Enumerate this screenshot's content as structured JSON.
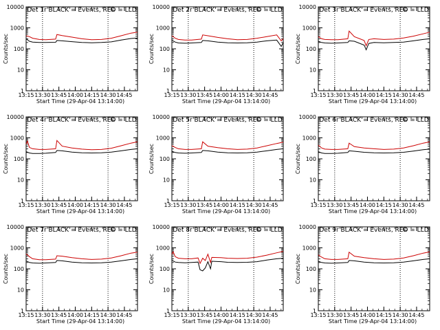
{
  "chart_data": [
    {
      "type": "line",
      "title": "Det 1r BLACK = Events, RED = LLD",
      "xlabel": "Start Time (29-Apr-04 13:14:00)",
      "ylabel": "Counts/sec",
      "yscale": "log",
      "ylim": [
        1,
        10000
      ],
      "x_ticks": [
        "13:15",
        "13:30",
        "13:45",
        "14:00",
        "14:15",
        "14:30",
        "14:45"
      ],
      "y_ticks": [
        "1",
        "10",
        "100",
        "1000",
        "10000"
      ],
      "x_range_min": [
        13.25,
        14.95
      ],
      "vlines_min": [
        13.5,
        14.5
      ],
      "series": [
        {
          "name": "Events",
          "color": "#000000",
          "x": [
            13.25,
            13.3,
            13.35,
            13.45,
            13.55,
            13.7,
            13.72,
            13.8,
            13.95,
            14.1,
            14.25,
            14.4,
            14.55,
            14.7,
            14.85,
            14.95
          ],
          "y": [
            300,
            230,
            210,
            200,
            200,
            205,
            250,
            240,
            220,
            200,
            195,
            200,
            215,
            260,
            310,
            330
          ]
        },
        {
          "name": "LLD",
          "color": "#cc0000",
          "x": [
            13.25,
            13.3,
            13.35,
            13.45,
            13.55,
            13.7,
            13.72,
            13.8,
            13.95,
            14.1,
            14.25,
            14.4,
            14.55,
            14.7,
            14.85,
            14.95
          ],
          "y": [
            420,
            380,
            320,
            280,
            270,
            290,
            480,
            430,
            360,
            300,
            270,
            280,
            320,
            420,
            560,
            620
          ]
        }
      ]
    },
    {
      "type": "line",
      "title": "Det 2r BLACK = Events, RED = LLD",
      "xlabel": "Start Time (29-Apr-04 13:14:00)",
      "ylabel": "Counts/sec",
      "yscale": "log",
      "ylim": [
        1,
        10000
      ],
      "x_ticks": [
        "13:15",
        "13:30",
        "13:45",
        "14:00",
        "14:15",
        "14:30",
        "14:45"
      ],
      "y_ticks": [
        "1",
        "10",
        "100",
        "1000",
        "10000"
      ],
      "x_range_min": [
        13.25,
        14.95
      ],
      "vlines_min": [
        13.5,
        14.5
      ],
      "series": [
        {
          "name": "Events",
          "color": "#000000",
          "x": [
            13.25,
            13.3,
            13.35,
            13.45,
            13.55,
            13.7,
            13.72,
            13.8,
            13.95,
            14.1,
            14.25,
            14.4,
            14.55,
            14.7,
            14.85,
            14.92,
            14.95
          ],
          "y": [
            260,
            210,
            190,
            185,
            190,
            200,
            250,
            240,
            210,
            195,
            190,
            195,
            210,
            240,
            260,
            130,
            200
          ]
        },
        {
          "name": "LLD",
          "color": "#cc0000",
          "x": [
            13.25,
            13.3,
            13.35,
            13.45,
            13.55,
            13.7,
            13.72,
            13.8,
            13.95,
            14.1,
            14.25,
            14.4,
            14.55,
            14.7,
            14.85,
            14.92,
            14.95
          ],
          "y": [
            420,
            320,
            280,
            260,
            260,
            290,
            460,
            420,
            350,
            300,
            270,
            280,
            320,
            380,
            460,
            240,
            300
          ]
        }
      ]
    },
    {
      "type": "line",
      "title": "Det 3r BLACK = Events, RED = LLD",
      "xlabel": "Start Time (29-Apr-04 13:14:00)",
      "ylabel": "Counts/sec",
      "yscale": "log",
      "ylim": [
        1,
        10000
      ],
      "x_ticks": [
        "13:15",
        "13:30",
        "13:45",
        "14:00",
        "14:15",
        "14:30",
        "14:45"
      ],
      "y_ticks": [
        "1",
        "10",
        "100",
        "1000",
        "10000"
      ],
      "x_range_min": [
        13.25,
        14.95
      ],
      "vlines_min": [
        13.5,
        14.5
      ],
      "series": [
        {
          "name": "Events",
          "color": "#000000",
          "x": [
            13.25,
            13.3,
            13.35,
            13.45,
            13.55,
            13.7,
            13.72,
            13.8,
            13.95,
            13.98,
            14.02,
            14.1,
            14.25,
            14.4,
            14.55,
            14.7,
            14.85,
            14.95
          ],
          "y": [
            230,
            200,
            190,
            185,
            190,
            200,
            240,
            230,
            150,
            90,
            180,
            200,
            195,
            200,
            210,
            240,
            280,
            300
          ]
        },
        {
          "name": "LLD",
          "color": "#cc0000",
          "x": [
            13.25,
            13.3,
            13.35,
            13.45,
            13.55,
            13.7,
            13.72,
            13.8,
            13.95,
            13.98,
            14.02,
            14.1,
            14.25,
            14.4,
            14.55,
            14.7,
            14.85,
            14.95
          ],
          "y": [
            380,
            300,
            280,
            270,
            270,
            300,
            700,
            380,
            250,
            140,
            280,
            300,
            280,
            290,
            330,
            400,
            520,
            620
          ]
        }
      ]
    },
    {
      "type": "line",
      "title": "Det 4r BLACK = Events, RED = LLD",
      "xlabel": "Start Time (29-Apr-04 13:14:00)",
      "ylabel": "Counts/sec",
      "yscale": "log",
      "ylim": [
        1,
        10000
      ],
      "x_ticks": [
        "13:15",
        "13:30",
        "13:45",
        "14:00",
        "14:15",
        "14:30",
        "14:45"
      ],
      "y_ticks": [
        "1",
        "10",
        "100",
        "1000",
        "10000"
      ],
      "x_range_min": [
        13.25,
        14.95
      ],
      "vlines_min": [
        13.5,
        14.5
      ],
      "series": [
        {
          "name": "Events",
          "color": "#000000",
          "x": [
            13.25,
            13.3,
            13.35,
            13.45,
            13.55,
            13.7,
            13.72,
            13.8,
            13.95,
            14.1,
            14.25,
            14.4,
            14.55,
            14.7,
            14.85,
            14.95
          ],
          "y": [
            220,
            190,
            180,
            180,
            185,
            200,
            250,
            240,
            210,
            195,
            190,
            195,
            210,
            240,
            280,
            300
          ]
        },
        {
          "name": "LLD",
          "color": "#cc0000",
          "x": [
            13.25,
            13.27,
            13.3,
            13.35,
            13.45,
            13.55,
            13.7,
            13.72,
            13.8,
            13.95,
            14.1,
            14.25,
            14.4,
            14.55,
            14.7,
            14.85,
            14.95
          ],
          "y": [
            500,
            700,
            350,
            300,
            280,
            280,
            300,
            750,
            400,
            330,
            290,
            270,
            280,
            320,
            420,
            560,
            650
          ]
        }
      ]
    },
    {
      "type": "line",
      "title": "Det 5r BLACK = Events, RED = LLD",
      "xlabel": "Start Time (29-Apr-04 13:14:00)",
      "ylabel": "Counts/sec",
      "yscale": "log",
      "ylim": [
        1,
        10000
      ],
      "x_ticks": [
        "13:15",
        "13:30",
        "13:45",
        "14:00",
        "14:15",
        "14:30",
        "14:45"
      ],
      "y_ticks": [
        "1",
        "10",
        "100",
        "1000",
        "10000"
      ],
      "x_range_min": [
        13.25,
        14.95
      ],
      "vlines_min": [
        13.5,
        14.5
      ],
      "series": [
        {
          "name": "Events",
          "color": "#000000",
          "x": [
            13.25,
            13.3,
            13.35,
            13.45,
            13.55,
            13.7,
            13.72,
            13.8,
            13.95,
            14.1,
            14.25,
            14.4,
            14.55,
            14.7,
            14.85,
            14.95
          ],
          "y": [
            230,
            200,
            190,
            185,
            190,
            200,
            250,
            240,
            210,
            195,
            190,
            195,
            210,
            240,
            280,
            300
          ]
        },
        {
          "name": "LLD",
          "color": "#cc0000",
          "x": [
            13.25,
            13.3,
            13.35,
            13.45,
            13.55,
            13.7,
            13.72,
            13.8,
            13.95,
            14.1,
            14.25,
            14.4,
            14.55,
            14.7,
            14.85,
            14.95
          ],
          "y": [
            420,
            350,
            300,
            280,
            280,
            300,
            650,
            400,
            340,
            300,
            280,
            290,
            330,
            420,
            540,
            620
          ]
        }
      ]
    },
    {
      "type": "line",
      "title": "Det 6r BLACK = Events, RED = LLD",
      "xlabel": "Start Time (29-Apr-04 13:14:00)",
      "ylabel": "Counts/sec",
      "yscale": "log",
      "ylim": [
        1,
        10000
      ],
      "x_ticks": [
        "13:15",
        "13:30",
        "13:45",
        "14:00",
        "14:15",
        "14:30",
        "14:45"
      ],
      "y_ticks": [
        "1",
        "10",
        "100",
        "1000",
        "10000"
      ],
      "x_range_min": [
        13.25,
        14.95
      ],
      "vlines_min": [
        13.5,
        14.5
      ],
      "series": [
        {
          "name": "Events",
          "color": "#000000",
          "x": [
            13.25,
            13.3,
            13.35,
            13.45,
            13.55,
            13.7,
            13.72,
            13.8,
            13.95,
            14.1,
            14.25,
            14.4,
            14.55,
            14.7,
            14.85,
            14.95
          ],
          "y": [
            220,
            190,
            180,
            180,
            185,
            200,
            240,
            230,
            205,
            195,
            190,
            195,
            205,
            235,
            270,
            290
          ]
        },
        {
          "name": "LLD",
          "color": "#cc0000",
          "x": [
            13.25,
            13.3,
            13.35,
            13.45,
            13.55,
            13.7,
            13.72,
            13.8,
            13.95,
            14.1,
            14.25,
            14.4,
            14.55,
            14.7,
            14.85,
            14.95
          ],
          "y": [
            450,
            330,
            290,
            280,
            280,
            300,
            560,
            380,
            330,
            300,
            280,
            290,
            330,
            420,
            560,
            640
          ]
        }
      ]
    },
    {
      "type": "line",
      "title": "Det 7r BLACK = Events, RED = LLD",
      "xlabel": "Start Time (29-Apr-04 13:14:00)",
      "ylabel": "Counts/sec",
      "yscale": "log",
      "ylim": [
        1,
        10000
      ],
      "x_ticks": [
        "13:15",
        "13:30",
        "13:45",
        "14:00",
        "14:15",
        "14:30",
        "14:45"
      ],
      "y_ticks": [
        "1",
        "10",
        "100",
        "1000",
        "10000"
      ],
      "x_range_min": [
        13.25,
        14.95
      ],
      "vlines_min": [
        13.5,
        14.5
      ],
      "series": [
        {
          "name": "Events",
          "color": "#000000",
          "x": [
            13.25,
            13.3,
            13.35,
            13.45,
            13.55,
            13.7,
            13.72,
            13.8,
            13.95,
            14.1,
            14.25,
            14.4,
            14.55,
            14.7,
            14.85,
            14.95
          ],
          "y": [
            240,
            200,
            190,
            185,
            190,
            200,
            250,
            240,
            210,
            195,
            190,
            195,
            210,
            240,
            280,
            300
          ]
        },
        {
          "name": "LLD",
          "color": "#cc0000",
          "x": [
            13.25,
            13.3,
            13.35,
            13.45,
            13.55,
            13.7,
            13.72,
            13.8,
            13.95,
            14.1,
            14.25,
            14.4,
            14.55,
            14.7,
            14.85,
            14.95
          ],
          "y": [
            520,
            380,
            300,
            270,
            270,
            290,
            420,
            400,
            340,
            300,
            280,
            290,
            330,
            420,
            560,
            620
          ]
        }
      ]
    },
    {
      "type": "line",
      "title": "Det 8r BLACK = Events, RED = LLD",
      "xlabel": "Start Time (29-Apr-04 13:14:00)",
      "ylabel": "Counts/sec",
      "yscale": "log",
      "ylim": [
        1,
        10000
      ],
      "x_ticks": [
        "13:15",
        "13:30",
        "13:45",
        "14:00",
        "14:15",
        "14:30",
        "14:45"
      ],
      "y_ticks": [
        "1",
        "10",
        "100",
        "1000",
        "10000"
      ],
      "x_range_min": [
        13.25,
        14.95
      ],
      "vlines_min": [
        13.5,
        14.5
      ],
      "series": [
        {
          "name": "Events",
          "color": "#000000",
          "x": [
            13.25,
            13.3,
            13.35,
            13.45,
            13.55,
            13.65,
            13.68,
            13.72,
            13.76,
            13.8,
            13.84,
            13.86,
            14.0,
            14.1,
            14.25,
            14.4,
            14.55,
            14.7,
            14.85,
            14.95
          ],
          "y": [
            260,
            210,
            200,
            195,
            200,
            210,
            90,
            80,
            110,
            220,
            100,
            230,
            220,
            205,
            200,
            205,
            220,
            260,
            300,
            320
          ]
        },
        {
          "name": "LLD",
          "color": "#cc0000",
          "x": [
            13.25,
            13.27,
            13.3,
            13.35,
            13.45,
            13.55,
            13.65,
            13.68,
            13.72,
            13.76,
            13.8,
            13.84,
            13.86,
            14.0,
            14.1,
            14.25,
            14.4,
            14.55,
            14.7,
            14.85,
            14.95
          ],
          "y": [
            500,
            650,
            380,
            320,
            300,
            300,
            330,
            180,
            320,
            250,
            500,
            200,
            350,
            340,
            320,
            310,
            320,
            360,
            450,
            580,
            680
          ]
        }
      ]
    },
    {
      "type": "line",
      "title": "Det 9r BLACK = Events, RED = LLD",
      "xlabel": "Start Time (29-Apr-04 13:14:00)",
      "ylabel": "Counts/sec",
      "yscale": "log",
      "ylim": [
        1,
        10000
      ],
      "x_ticks": [
        "13:15",
        "13:30",
        "13:45",
        "14:00",
        "14:15",
        "14:30",
        "14:45"
      ],
      "y_ticks": [
        "1",
        "10",
        "100",
        "1000",
        "10000"
      ],
      "x_range_min": [
        13.25,
        14.95
      ],
      "vlines_min": [
        13.5,
        14.5
      ],
      "series": [
        {
          "name": "Events",
          "color": "#000000",
          "x": [
            13.25,
            13.3,
            13.35,
            13.45,
            13.55,
            13.7,
            13.72,
            13.8,
            13.95,
            14.1,
            14.25,
            14.4,
            14.55,
            14.7,
            14.85,
            14.95
          ],
          "y": [
            230,
            200,
            190,
            185,
            190,
            200,
            250,
            240,
            210,
            195,
            190,
            195,
            210,
            240,
            280,
            300
          ]
        },
        {
          "name": "LLD",
          "color": "#cc0000",
          "x": [
            13.25,
            13.3,
            13.35,
            13.45,
            13.55,
            13.7,
            13.72,
            13.8,
            13.95,
            14.1,
            14.25,
            14.4,
            14.55,
            14.7,
            14.85,
            14.95
          ],
          "y": [
            460,
            360,
            300,
            280,
            280,
            300,
            620,
            400,
            340,
            300,
            280,
            290,
            330,
            420,
            560,
            640
          ]
        }
      ]
    }
  ]
}
